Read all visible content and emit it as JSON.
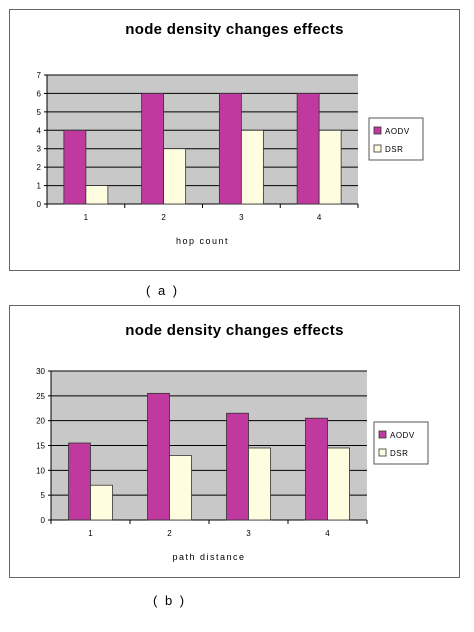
{
  "colors": {
    "AODV": "#c0399f",
    "DSR": "#fffde0",
    "plot_bg": "#c8c8c8",
    "grid": "#000000"
  },
  "captions": [
    "( a )",
    "( b )"
  ],
  "chart_data": [
    {
      "type": "bar",
      "title": "node density changes effects",
      "xlabel": "hop count",
      "ylabel": "",
      "categories": [
        "1",
        "2",
        "3",
        "4"
      ],
      "ylim": [
        0,
        7
      ],
      "yticks": [
        0,
        1,
        2,
        3,
        4,
        5,
        6,
        7
      ],
      "grid": true,
      "legend": "right",
      "series": [
        {
          "name": "AODV",
          "values": [
            4,
            6,
            6,
            6
          ]
        },
        {
          "name": "DSR",
          "values": [
            1,
            3,
            4,
            4
          ]
        }
      ]
    },
    {
      "type": "bar",
      "title": "node density changes effects",
      "xlabel": "path distance",
      "ylabel": "",
      "categories": [
        "1",
        "2",
        "3",
        "4"
      ],
      "ylim": [
        0,
        30
      ],
      "yticks": [
        0,
        5,
        10,
        15,
        20,
        25,
        30
      ],
      "grid": true,
      "legend": "right",
      "series": [
        {
          "name": "AODV",
          "values": [
            15.5,
            25.5,
            21.5,
            20.5
          ]
        },
        {
          "name": "DSR",
          "values": [
            7,
            13,
            14.5,
            14.5
          ]
        }
      ]
    }
  ]
}
